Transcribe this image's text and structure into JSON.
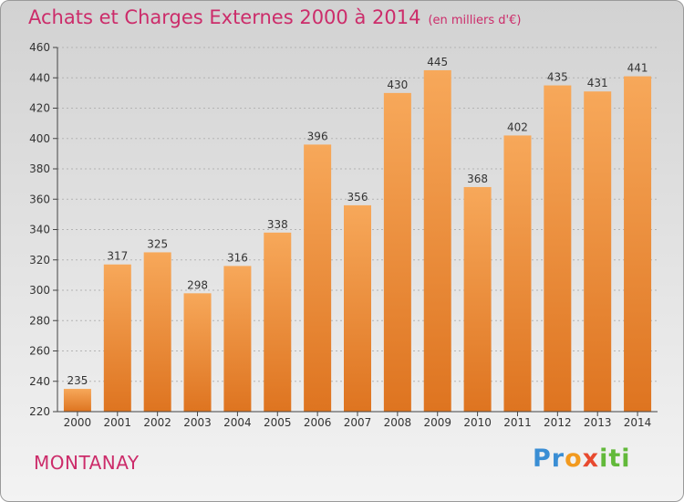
{
  "header": {
    "title": "Achats et Charges Externes 2000 à 2014",
    "subtitle": "(en milliers d'€)"
  },
  "location": "MONTANAY",
  "logo": "Proxiti",
  "colors": {
    "title": "#cc2c6a",
    "bar_light": "#f7a85a",
    "bar_dark": "#de7420",
    "axis": "#444444"
  },
  "chart_data": {
    "type": "bar",
    "title": "Achats et Charges Externes 2000 à 2014",
    "subtitle": "(en milliers d'€)",
    "xlabel": "",
    "ylabel": "",
    "categories": [
      "2000",
      "2001",
      "2002",
      "2003",
      "2004",
      "2005",
      "2006",
      "2007",
      "2008",
      "2009",
      "2010",
      "2011",
      "2012",
      "2013",
      "2014"
    ],
    "values": [
      235,
      317,
      325,
      298,
      316,
      338,
      396,
      356,
      430,
      445,
      368,
      402,
      435,
      431,
      441
    ],
    "ylim": [
      220,
      460
    ],
    "yticks": [
      220,
      240,
      260,
      280,
      300,
      320,
      340,
      360,
      380,
      400,
      420,
      440,
      460
    ],
    "grid": true,
    "legend": "none"
  }
}
